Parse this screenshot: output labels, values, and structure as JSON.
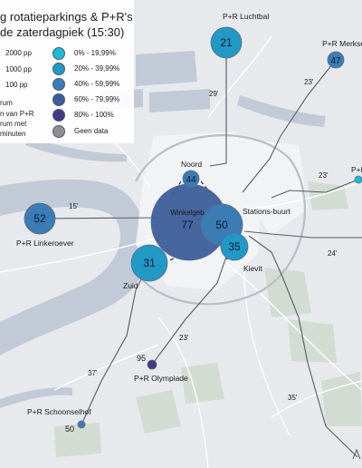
{
  "map": {
    "title_line1": "g rotatieparkings & P+R's",
    "title_line2": "de zaterdagpiek (15:30)",
    "size_legend": [
      "2000 pp",
      "1000 pp",
      "100 pp"
    ],
    "legend_note_lines": [
      "rum",
      "n van P+R",
      "rum met",
      "minuten"
    ],
    "classes": [
      {
        "label": "0% - 19,99%",
        "color": "#1bbcd2"
      },
      {
        "label": "20% - 39,99%",
        "color": "#2199c4"
      },
      {
        "label": "40% - 59,99%",
        "color": "#3a7cb3"
      },
      {
        "label": "60% - 79,99%",
        "color": "#3d5d9a"
      },
      {
        "label": "80% - 100%",
        "color": "#3f3b85"
      },
      {
        "label": "Geen data",
        "color": "#8e8e8e"
      }
    ],
    "parkings": [
      {
        "name": "Winkelgeb.",
        "value": "77",
        "color": "#3d5d9a"
      },
      {
        "name": "Stations-buurt",
        "value": "50",
        "color": "#3a7cb3"
      },
      {
        "name": "Kievit",
        "value": "35",
        "color": "#2199c4"
      },
      {
        "name": "Zuid",
        "value": "31",
        "color": "#2199c4"
      },
      {
        "name": "Noord",
        "value": "44",
        "color": "#3a7cb3"
      },
      {
        "name": "P+R Linkeroever",
        "value": "52",
        "color": "#3a7cb3"
      },
      {
        "name": "P+R Luchtbal",
        "value": "21",
        "color": "#2199c4"
      },
      {
        "name": "P+R Merksem",
        "value": "47",
        "color": "#3a7cb3"
      },
      {
        "name": "P+R Olympiade",
        "value": "95",
        "color": "#3f3b85"
      },
      {
        "name": "P+R Schoonselhof",
        "value": "50",
        "color": "#3a7cb3"
      },
      {
        "name": "P+R",
        "value": "",
        "color": "#1bbcd2"
      }
    ],
    "travel_times": [
      "29'",
      "23'",
      "23'",
      "15'",
      "24'",
      "23'",
      "37'",
      "35'"
    ]
  }
}
